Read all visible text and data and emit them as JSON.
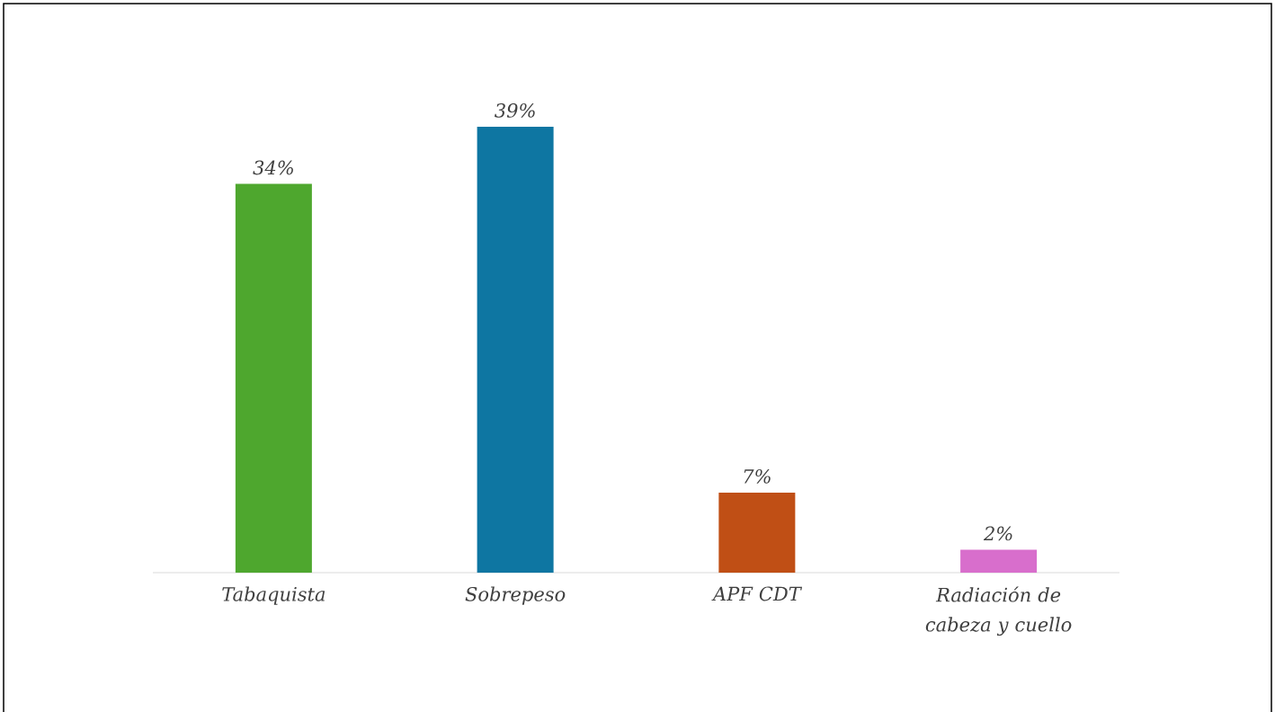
{
  "chart_data": {
    "type": "bar",
    "categories": [
      "Tabaquista",
      "Sobrepeso",
      "APF CDT",
      "Radiación de cabeza y cuello"
    ],
    "values": [
      34,
      39,
      7,
      2
    ],
    "colors": [
      "#4ea72e",
      "#0e76a2",
      "#c04f15",
      "#d86ecc"
    ],
    "value_labels": [
      "34%",
      "39%",
      "7%",
      "2%"
    ]
  }
}
